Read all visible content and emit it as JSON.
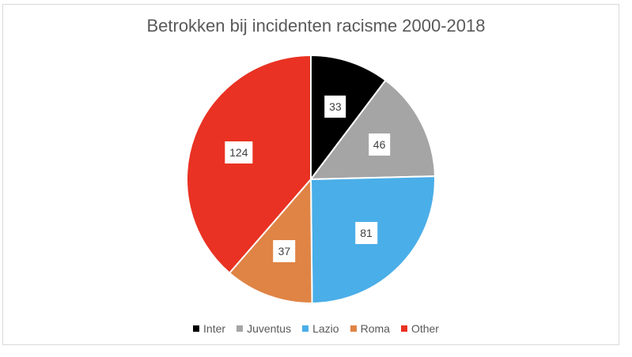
{
  "chart_data": {
    "type": "pie",
    "title": "Betrokken bij incidenten racisme 2000-2018",
    "categories": [
      "Inter",
      "Juventus",
      "Lazio",
      "Roma",
      "Other"
    ],
    "values": [
      33,
      46,
      81,
      37,
      124
    ],
    "colors": [
      "#000000",
      "#a5a5a5",
      "#4aaee8",
      "#df8445",
      "#e93223"
    ],
    "start_angle": "12 o'clock",
    "direction": "clockwise",
    "data_labels": [
      "33",
      "46",
      "81",
      "37",
      "124"
    ],
    "legend_position": "bottom"
  },
  "legend": [
    {
      "label": "Inter",
      "color": "#000000"
    },
    {
      "label": "Juventus",
      "color": "#a5a5a5"
    },
    {
      "label": "Lazio",
      "color": "#4aaee8"
    },
    {
      "label": "Roma",
      "color": "#df8445"
    },
    {
      "label": "Other",
      "color": "#e93223"
    }
  ]
}
